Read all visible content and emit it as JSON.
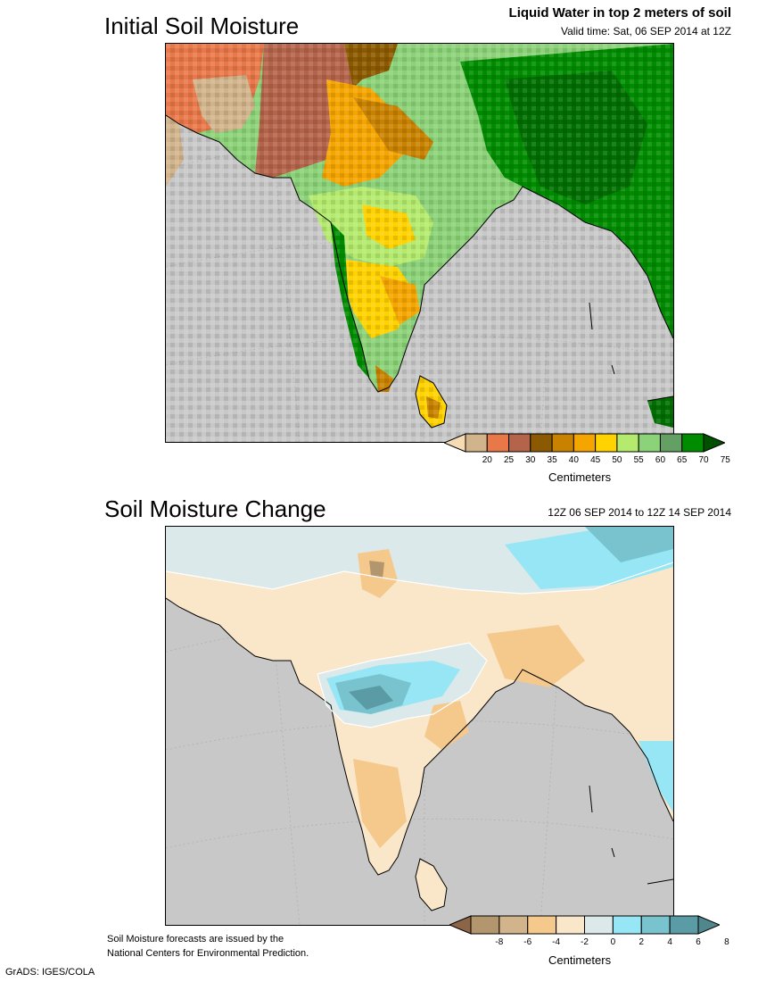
{
  "panel1": {
    "title": "Initial Soil Moisture",
    "subtitle": "Liquid Water in top 2 meters of soil",
    "valid_time": "Valid time: Sat, 06 SEP 2014 at 12Z",
    "colorbar": {
      "ticks": [
        "20",
        "25",
        "30",
        "35",
        "40",
        "45",
        "50",
        "55",
        "60",
        "65",
        "70",
        "75"
      ],
      "colors": [
        "#f5dcb4",
        "#d2b48c",
        "#e8784a",
        "#b4644a",
        "#8b5a00",
        "#c88200",
        "#f5a500",
        "#ffd200",
        "#b4eb6e",
        "#8cd278",
        "#64a064",
        "#008c00",
        "#005000"
      ],
      "units": "Centimeters"
    }
  },
  "panel2": {
    "title": "Soil Moisture Change",
    "period": "12Z 06 SEP 2014 to 12Z 14 SEP 2014",
    "colorbar": {
      "ticks": [
        "-8",
        "-6",
        "-4",
        "-2",
        "0",
        "2",
        "4",
        "6",
        "8"
      ],
      "colors": [
        "#8c6446",
        "#b4966e",
        "#d2b48c",
        "#f5c88c",
        "#fae6c8",
        "#dce9eb",
        "#96e6f5",
        "#78c3cd",
        "#5a9ba5",
        "#50878c"
      ],
      "units": "Centimeters"
    }
  },
  "footer": {
    "note_line1": "Soil Moisture forecasts are issued by the",
    "note_line2": "National Centers for Environmental Prediction.",
    "credit": "GrADS: IGES/COLA"
  }
}
